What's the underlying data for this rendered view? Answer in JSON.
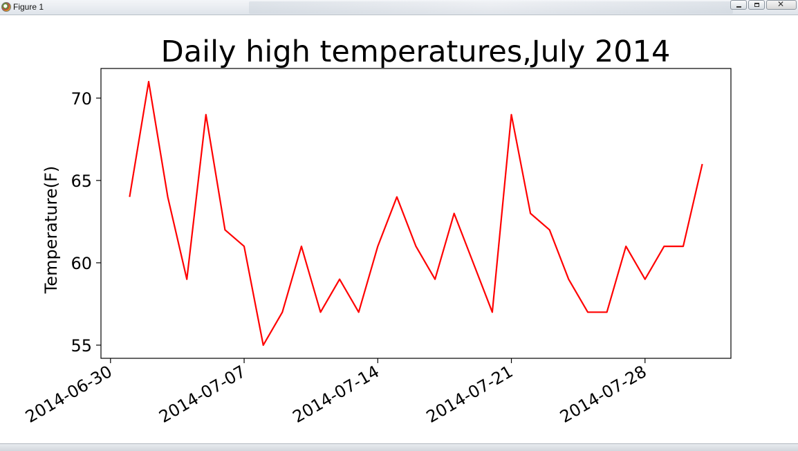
{
  "window": {
    "title": "Figure 1",
    "icon": "matplotlib-icon",
    "controls": [
      "minimize-icon",
      "maximize-icon",
      "close-icon"
    ]
  },
  "chart_data": {
    "type": "line",
    "title": "Daily high temperatures,July 2014",
    "xlabel": "",
    "ylabel": "Temperature(F)",
    "x": [
      "2014-07-01",
      "2014-07-02",
      "2014-07-03",
      "2014-07-04",
      "2014-07-05",
      "2014-07-06",
      "2014-07-07",
      "2014-07-08",
      "2014-07-09",
      "2014-07-10",
      "2014-07-11",
      "2014-07-12",
      "2014-07-13",
      "2014-07-14",
      "2014-07-15",
      "2014-07-16",
      "2014-07-17",
      "2014-07-18",
      "2014-07-19",
      "2014-07-20",
      "2014-07-21",
      "2014-07-22",
      "2014-07-23",
      "2014-07-24",
      "2014-07-25",
      "2014-07-26",
      "2014-07-27",
      "2014-07-28",
      "2014-07-29",
      "2014-07-30",
      "2014-07-31"
    ],
    "series": [
      {
        "color": "#ff0000",
        "values": [
          64,
          71,
          64,
          59,
          69,
          62,
          61,
          55,
          57,
          61,
          57,
          59,
          57,
          61,
          64,
          61,
          59,
          63,
          60,
          57,
          69,
          63,
          62,
          59,
          57,
          57,
          61,
          59,
          61,
          61,
          66
        ]
      }
    ],
    "xticks": [
      "2014-06-30",
      "2014-07-07",
      "2014-07-14",
      "2014-07-21",
      "2014-07-28"
    ],
    "yticks": [
      55,
      60,
      65,
      70
    ],
    "xlim": [
      "2014-06-29T12:00",
      "2014-08-01T12:00"
    ],
    "ylim": [
      54.2,
      71.8
    ],
    "grid": false,
    "legend": "none"
  }
}
